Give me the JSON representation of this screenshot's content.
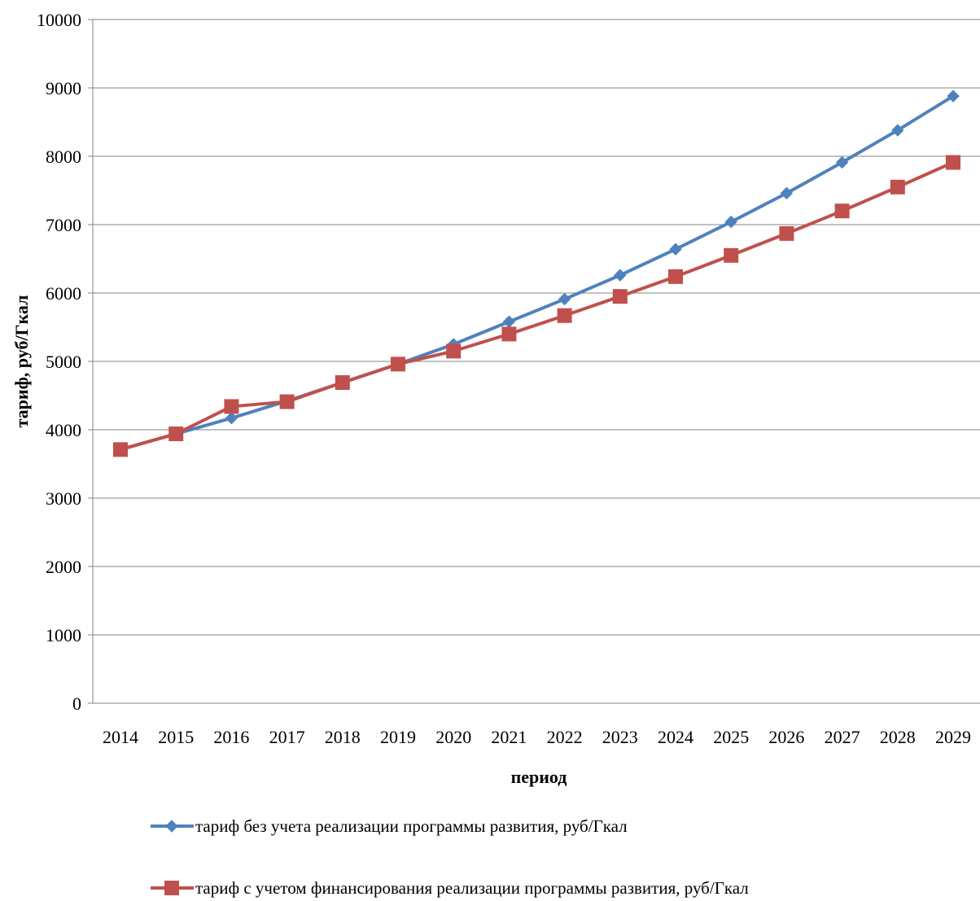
{
  "chart_data": {
    "type": "line",
    "title": "",
    "xlabel": "период",
    "ylabel": "тариф, руб/Гкал",
    "ylim": [
      0,
      10000
    ],
    "yticks": [
      0,
      1000,
      2000,
      3000,
      4000,
      5000,
      6000,
      7000,
      8000,
      9000,
      10000
    ],
    "grid": true,
    "legend_position": "bottom",
    "categories": [
      "2014",
      "2015",
      "2016",
      "2017",
      "2018",
      "2019",
      "2020",
      "2021",
      "2022",
      "2023",
      "2024",
      "2025",
      "2026",
      "2027",
      "2028",
      "2029"
    ],
    "series": [
      {
        "name": "тариф без учета реализации программы развития, руб/Гкал",
        "color": "#4F81BD",
        "marker": "diamond",
        "values": [
          3710,
          3940,
          4170,
          4420,
          4690,
          4960,
          5250,
          5580,
          5910,
          6260,
          6640,
          7040,
          7460,
          7910,
          8380,
          8880
        ]
      },
      {
        "name": "тариф с учетом финансирования реализации программы развития, руб/Гкал",
        "color": "#C0504D",
        "marker": "square",
        "values": [
          3710,
          3940,
          4340,
          4410,
          4690,
          4960,
          5150,
          5400,
          5670,
          5950,
          6240,
          6550,
          6870,
          7200,
          7550,
          7910
        ]
      }
    ]
  }
}
